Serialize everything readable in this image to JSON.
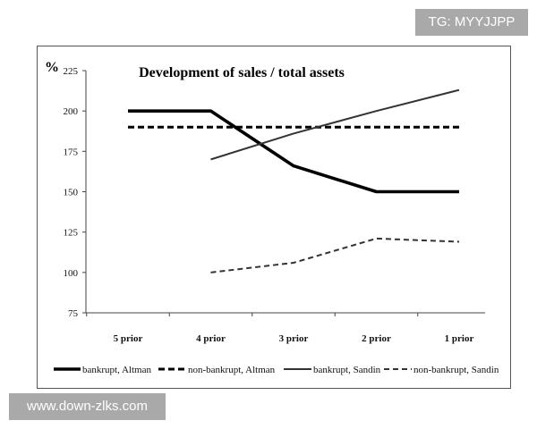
{
  "watermarks": {
    "top": "TG: MYYJJPP",
    "bottom": "www.down-zlks.com"
  },
  "chart_data": {
    "type": "line",
    "title": "Development of sales / total assets",
    "ylabel": "%",
    "xlabel": "",
    "categories": [
      "5 prior",
      "4 prior",
      "3 prior",
      "2 prior",
      "1 prior"
    ],
    "ylim": [
      75,
      225
    ],
    "yticks": [
      75,
      100,
      125,
      150,
      175,
      200,
      225
    ],
    "grid": false,
    "legend_position": "bottom",
    "series": [
      {
        "name": "bankrupt, Altman",
        "style": "thick-solid",
        "color": "#000000",
        "values": [
          200,
          200,
          166,
          150,
          150
        ]
      },
      {
        "name": "non-bankrupt, Altman",
        "style": "thick-dashed",
        "color": "#000000",
        "values": [
          190,
          190,
          190,
          190,
          190
        ]
      },
      {
        "name": "bankrupt, Sandin",
        "style": "thin-solid",
        "color": "#333333",
        "values": [
          null,
          170,
          186,
          200,
          213
        ]
      },
      {
        "name": "non-bankrupt, Sandin",
        "style": "thin-dashed",
        "color": "#333333",
        "values": [
          null,
          100,
          106,
          121,
          119
        ]
      }
    ]
  }
}
